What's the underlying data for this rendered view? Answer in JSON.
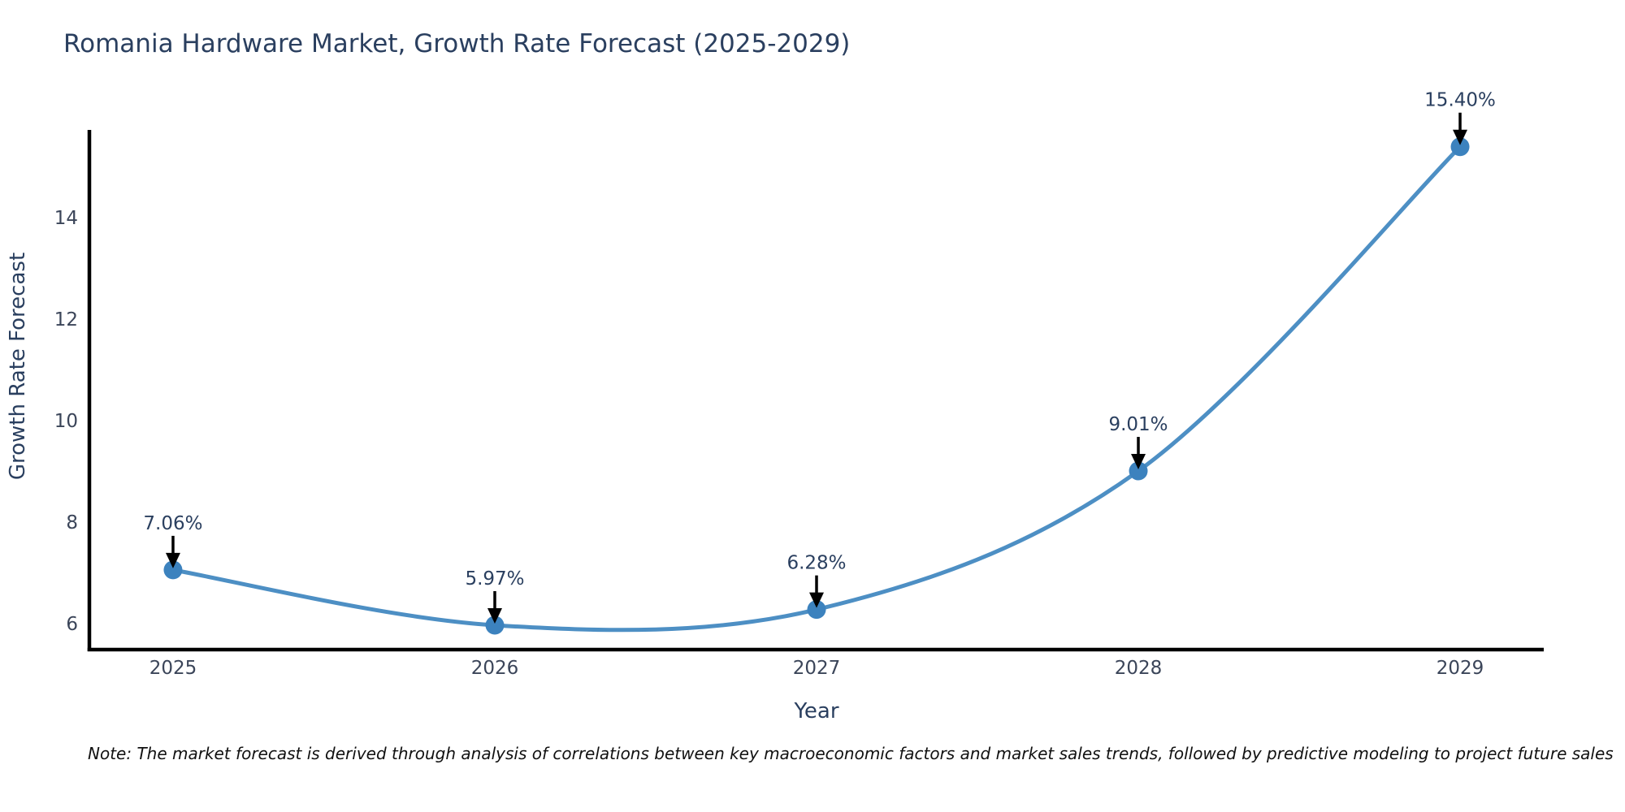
{
  "chart_data": {
    "type": "line",
    "title": "Romania Hardware Market, Growth Rate Forecast (2025-2029)",
    "xlabel": "Year",
    "ylabel": "Growth Rate Forecast",
    "x": [
      2025,
      2026,
      2027,
      2028,
      2029
    ],
    "categories": [
      "2025",
      "2026",
      "2027",
      "2028",
      "2029"
    ],
    "values": [
      7.06,
      5.97,
      6.28,
      9.01,
      15.4
    ],
    "point_labels": [
      "7.06%",
      "5.97%",
      "6.28%",
      "9.01%",
      "15.40%"
    ],
    "yticks": [
      6,
      8,
      10,
      12,
      14
    ],
    "ylim": [
      5.49,
      15.7
    ],
    "xlim": [
      2024.74,
      2029.26
    ],
    "grid": false,
    "legend": "none",
    "line_shape": "spline",
    "colors": {
      "line": "#4d8fc4",
      "marker": "#3c82be",
      "axis": "#000000",
      "arrow": "#000000",
      "title_text": "#2a3f5f",
      "tick_text": "#3b4559"
    },
    "note": "Note: The market forecast is derived through analysis of correlations between key macroeconomic factors and market sales trends, followed by predictive modeling to project future sales"
  }
}
